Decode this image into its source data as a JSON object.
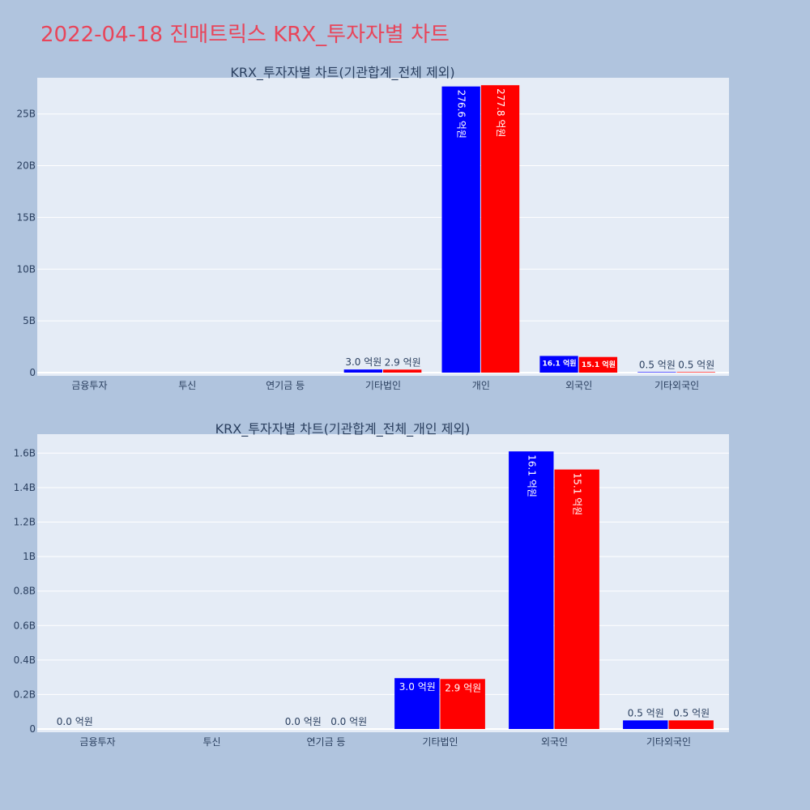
{
  "page": {
    "title": "2022-04-18 진매트릭스 KRX_투자자별 차트"
  },
  "colors": {
    "page_background": "#b0c4de",
    "plot_background": "#e5ecf6",
    "grid": "#ffffff",
    "title": "#e8455a",
    "series_a": "#0000ff",
    "series_b": "#ff0000"
  },
  "chart_data": [
    {
      "type": "bar",
      "title": "KRX_투자자별 차트(기관합계_전체 제외)",
      "categories": [
        "금융투자",
        "투신",
        "연기금 등",
        "기타법인",
        "개인",
        "외국인",
        "기타외국인"
      ],
      "series": [
        {
          "color": "#0000ff",
          "values": [
            0,
            0,
            0,
            300000000,
            27660000000,
            1610000000,
            50000000
          ],
          "labels": [
            "",
            "",
            "",
            "3.0 억원",
            "276.6 억원",
            "16.1 억원",
            "0.5 억원"
          ]
        },
        {
          "color": "#ff0000",
          "values": [
            0,
            0,
            0,
            290000000,
            27780000000,
            1510000000,
            50000000
          ],
          "labels": [
            "",
            "",
            "",
            "2.9 억원",
            "277.8 억원",
            "15.1 억원",
            "0.5 억원"
          ]
        }
      ],
      "ylim": [
        0,
        28500000000
      ],
      "yticks": [
        {
          "value": 0,
          "label": "0"
        },
        {
          "value": 5000000000,
          "label": "5B"
        },
        {
          "value": 10000000000,
          "label": "10B"
        },
        {
          "value": 15000000000,
          "label": "15B"
        },
        {
          "value": 20000000000,
          "label": "20B"
        },
        {
          "value": 25000000000,
          "label": "25B"
        }
      ],
      "grid": true,
      "legend": "none"
    },
    {
      "type": "bar",
      "title": "KRX_투자자별 차트(기관합계_전체_개인 제외)",
      "categories": [
        "금융투자",
        "투신",
        "연기금 등",
        "기타법인",
        "외국인",
        "기타외국인"
      ],
      "series": [
        {
          "color": "#0000ff",
          "values": [
            0,
            0,
            0,
            295000000,
            1610000000,
            50000000
          ],
          "labels": [
            "0.0 억원",
            "",
            "0.0 억원",
            "3.0 억원",
            "16.1 억원",
            "0.5 억원"
          ]
        },
        {
          "color": "#ff0000",
          "values": [
            0,
            0,
            0,
            290000000,
            1505000000,
            50000000
          ],
          "labels": [
            "",
            "",
            "0.0 억원",
            "2.9 억원",
            "15.1 억원",
            "0.5 억원"
          ]
        }
      ],
      "ylim": [
        0,
        1710000000
      ],
      "yticks": [
        {
          "value": 0,
          "label": "0"
        },
        {
          "value": 200000000,
          "label": "0.2B"
        },
        {
          "value": 400000000,
          "label": "0.4B"
        },
        {
          "value": 600000000,
          "label": "0.6B"
        },
        {
          "value": 800000000,
          "label": "0.8B"
        },
        {
          "value": 1000000000,
          "label": "1B"
        },
        {
          "value": 1200000000,
          "label": "1.2B"
        },
        {
          "value": 1400000000,
          "label": "1.4B"
        },
        {
          "value": 1600000000,
          "label": "1.6B"
        }
      ],
      "grid": true,
      "legend": "none"
    }
  ]
}
